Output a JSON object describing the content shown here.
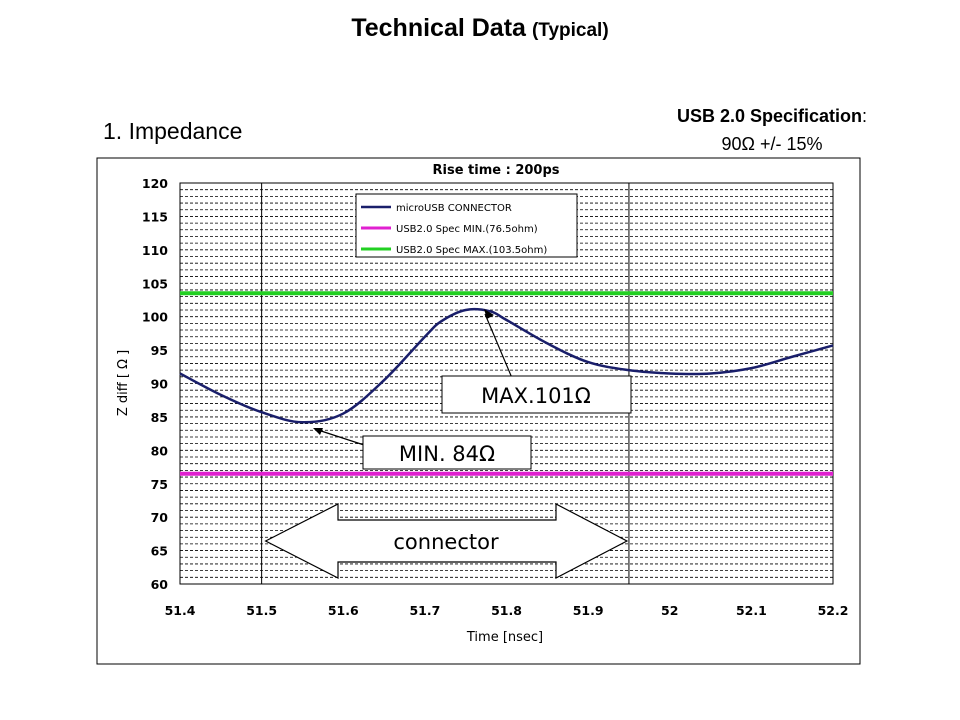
{
  "page": {
    "title": "Technical Data",
    "title_suffix": "(Typical)",
    "section_label": "1. Impedance",
    "spec_title": "USB 2.0 Specification",
    "spec_colon": ":",
    "spec_value": "90Ω +/- 15%"
  },
  "chart_data": {
    "type": "line",
    "title": "Rise time : 200ps",
    "xlabel": "Time [nsec]",
    "ylabel": "Z diff [ Ω ]",
    "xlim": [
      51.4,
      52.2
    ],
    "ylim": [
      60,
      120
    ],
    "x_ticks": [
      "51.4",
      "51.5",
      "51.6",
      "51.7",
      "51.8",
      "51.9",
      "52",
      "52.1",
      "52.2"
    ],
    "y_ticks": [
      "60",
      "65",
      "70",
      "75",
      "80",
      "85",
      "90",
      "95",
      "100",
      "105",
      "110",
      "115",
      "120"
    ],
    "grid": "dashed horizontal every 1 Ω",
    "legend_position": "top-center",
    "series": [
      {
        "name": "microUSB CONNECTOR",
        "color": "#1a1f6b",
        "x": [
          51.4,
          51.45,
          51.5,
          51.55,
          51.6,
          51.65,
          51.7,
          51.72,
          51.75,
          51.78,
          51.8,
          51.85,
          51.9,
          51.95,
          52.0,
          52.05,
          52.1,
          52.15,
          52.2
        ],
        "y": [
          91.5,
          88.3,
          85.7,
          84.2,
          85.5,
          90.5,
          97.0,
          99.3,
          101.0,
          100.8,
          99.5,
          96.0,
          93.2,
          92.0,
          91.5,
          91.5,
          92.3,
          94.0,
          95.7
        ]
      },
      {
        "name": "USB2.0 Spec MIN.(76.5ohm)",
        "color": "#e020d0",
        "x": [
          51.4,
          52.2
        ],
        "y": [
          76.5,
          76.5
        ]
      },
      {
        "name": "USB2.0 Spec MAX.(103.5ohm)",
        "color": "#22d022",
        "x": [
          51.4,
          52.2
        ],
        "y": [
          103.5,
          103.5
        ]
      }
    ],
    "connector_boundaries": [
      51.5,
      51.95
    ],
    "annotations": [
      {
        "text": "MAX.101Ω",
        "x": 51.77,
        "y": 101
      },
      {
        "text": "MIN. 84Ω",
        "x": 51.57,
        "y": 84
      },
      {
        "text": "connector",
        "x_start": 51.5,
        "x_end": 51.95,
        "y": 66
      }
    ]
  }
}
